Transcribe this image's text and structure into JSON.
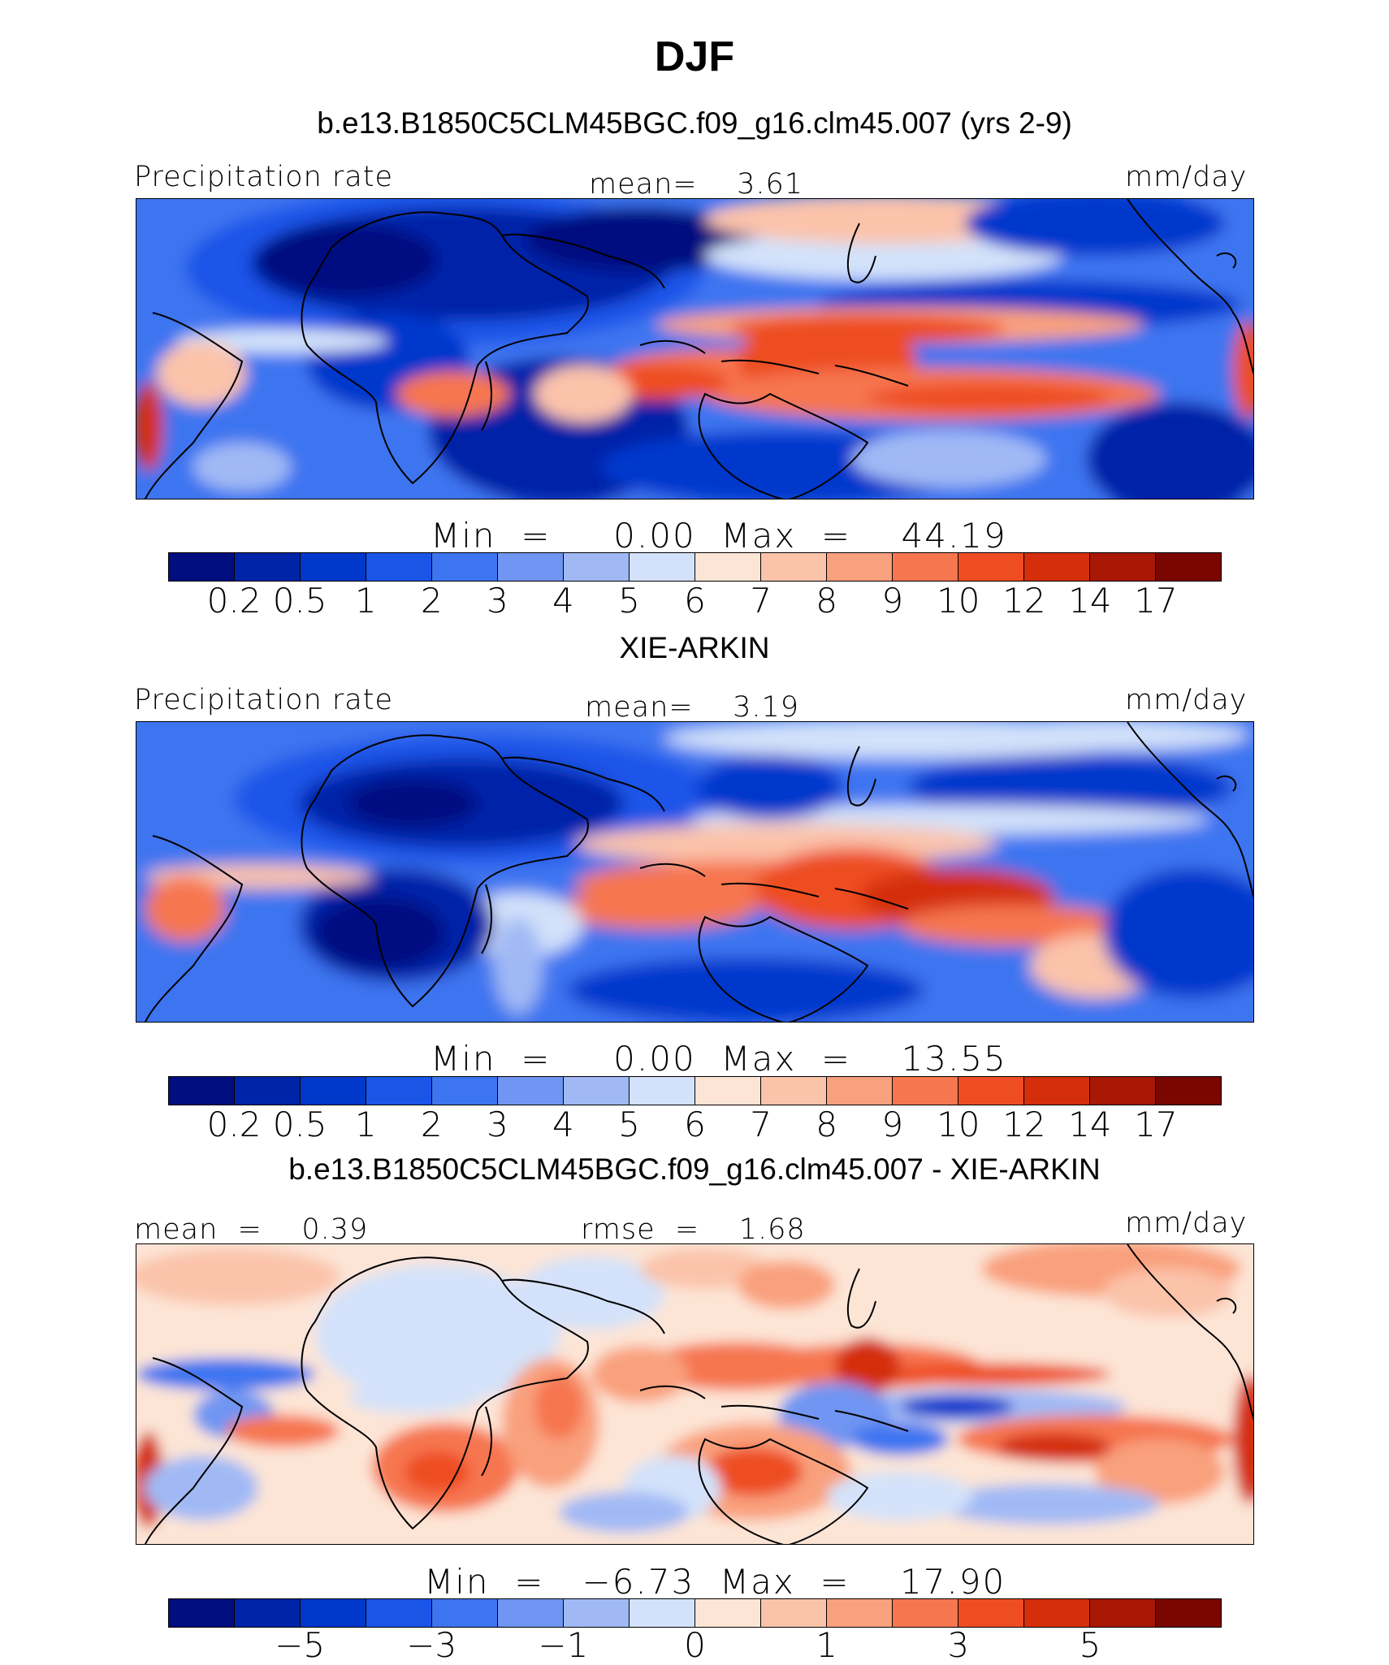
{
  "title": "DJF",
  "colors": {
    "precip": [
      "#000e80",
      "#0024a8",
      "#0038cc",
      "#1a55e8",
      "#3d75f0",
      "#7095f2",
      "#a0b9f5",
      "#d3e2fa",
      "#fde5d6",
      "#fbc3aa",
      "#f9a07d",
      "#f67650",
      "#ee4d24",
      "#d42e0a",
      "#a81805",
      "#7a0602"
    ],
    "diff": [
      "#000e80",
      "#0024a8",
      "#0038cc",
      "#1a55e8",
      "#3d75f0",
      "#7095f2",
      "#a0b9f5",
      "#d3e2fa",
      "#fde5d6",
      "#fbc3aa",
      "#f9a07d",
      "#f67650",
      "#ee4d24",
      "#d42e0a",
      "#a81805",
      "#7a0602"
    ]
  },
  "panels": [
    {
      "title": "b.e13.B1850C5CLM45BGC.f09_g16.clm45.007 (yrs 2-9)",
      "left_label": "Precipitation rate",
      "center_label": "mean=    3.61",
      "right_label": "mm/day",
      "minmax": "Min  =     0.00  Max  =    44.19",
      "ticks": [
        "0.2",
        "0.5",
        "1",
        "2",
        "3",
        "4",
        "5",
        "6",
        "7",
        "8",
        "9",
        "10",
        "12",
        "14",
        "17"
      ]
    },
    {
      "title": "XIE-ARKIN",
      "left_label": "Precipitation rate",
      "center_label": "mean=    3.19",
      "right_label": "mm/day",
      "minmax": "Min  =     0.00  Max  =    13.55",
      "ticks": [
        "0.2",
        "0.5",
        "1",
        "2",
        "3",
        "4",
        "5",
        "6",
        "7",
        "8",
        "9",
        "10",
        "12",
        "14",
        "17"
      ]
    },
    {
      "title": "b.e13.B1850C5CLM45BGC.f09_g16.clm45.007 - XIE-ARKIN",
      "left_label": "mean  =    0.39",
      "center_label": "rmse  =    1.68",
      "right_label": "mm/day",
      "minmax": "Min  =   −6.73  Max  =    17.90",
      "ticks": [
        "−5",
        "−3",
        "−1",
        "0",
        "1",
        "3",
        "5"
      ]
    }
  ],
  "chart_data": [
    {
      "type": "heatmap",
      "title": "b.e13.B1850C5CLM45BGC.f09_g16.clm45.007 (yrs 2-9)",
      "variable": "Precipitation rate",
      "units": "mm/day",
      "mean": 3.61,
      "min": 0.0,
      "max": 44.19,
      "contour_levels": [
        0.2,
        0.5,
        1,
        2,
        3,
        4,
        5,
        6,
        7,
        8,
        9,
        10,
        12,
        14,
        17
      ]
    },
    {
      "type": "heatmap",
      "title": "XIE-ARKIN",
      "variable": "Precipitation rate",
      "units": "mm/day",
      "mean": 3.19,
      "min": 0.0,
      "max": 13.55,
      "contour_levels": [
        0.2,
        0.5,
        1,
        2,
        3,
        4,
        5,
        6,
        7,
        8,
        9,
        10,
        12,
        14,
        17
      ]
    },
    {
      "type": "heatmap",
      "title": "b.e13.B1850C5CLM45BGC.f09_g16.clm45.007 - XIE-ARKIN",
      "units": "mm/day",
      "mean": 0.39,
      "rmse": 1.68,
      "min": -6.73,
      "max": 17.9,
      "colorbar_tick_labels": [
        -5,
        -3,
        -1,
        0,
        1,
        3,
        5
      ]
    }
  ]
}
